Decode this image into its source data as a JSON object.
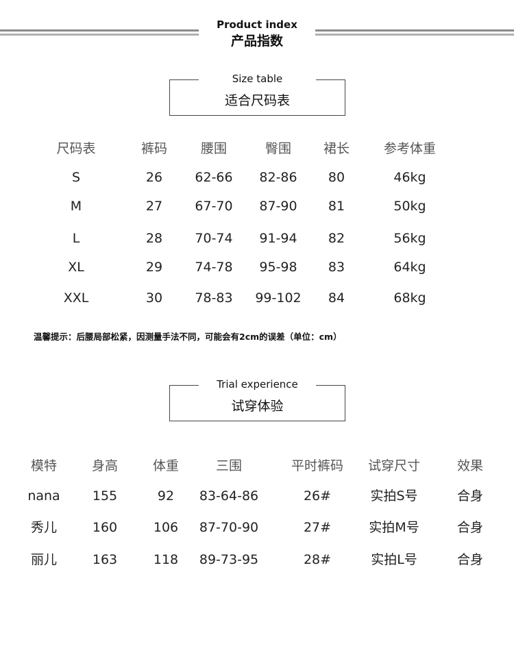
{
  "header": {
    "title_en": "Product index",
    "title_cn": "产品指数"
  },
  "size_section": {
    "title_en": "Size table",
    "title_cn": "适合尺码表"
  },
  "size_table": {
    "columns": [
      "尺码表",
      "裤码",
      "腰围",
      "臀围",
      "裙长",
      "参考体重"
    ],
    "rows": [
      [
        "S",
        "26",
        "62-66",
        "82-86",
        "80",
        "46kg"
      ],
      [
        "M",
        "27",
        "67-70",
        "87-90",
        "81",
        "50kg"
      ],
      [
        "L",
        "28",
        "70-74",
        "91-94",
        "82",
        "56kg"
      ],
      [
        "XL",
        "29",
        "74-78",
        "95-98",
        "83",
        "64kg"
      ],
      [
        "XXL",
        "30",
        "78-83",
        "99-102",
        "84",
        "68kg"
      ]
    ]
  },
  "note": "温馨提示：后腰局部松紧，因测量手法不同，可能会有2cm的误差（单位：cm）",
  "trial_section": {
    "title_en": "Trial experience",
    "title_cn": "试穿体验"
  },
  "trial_table": {
    "columns": [
      "模特",
      "身高",
      "体重",
      "三围",
      "平时裤码",
      "试穿尺寸",
      "效果"
    ],
    "rows": [
      [
        "nana",
        "155",
        "92",
        "83-64-86",
        "26#",
        "实拍S号",
        "合身"
      ],
      [
        "秀儿",
        "160",
        "106",
        "87-70-90",
        "27#",
        "实拍M号",
        "合身"
      ],
      [
        "丽儿",
        "163",
        "118",
        "89-73-95",
        "28#",
        "实拍L号",
        "合身"
      ]
    ]
  }
}
